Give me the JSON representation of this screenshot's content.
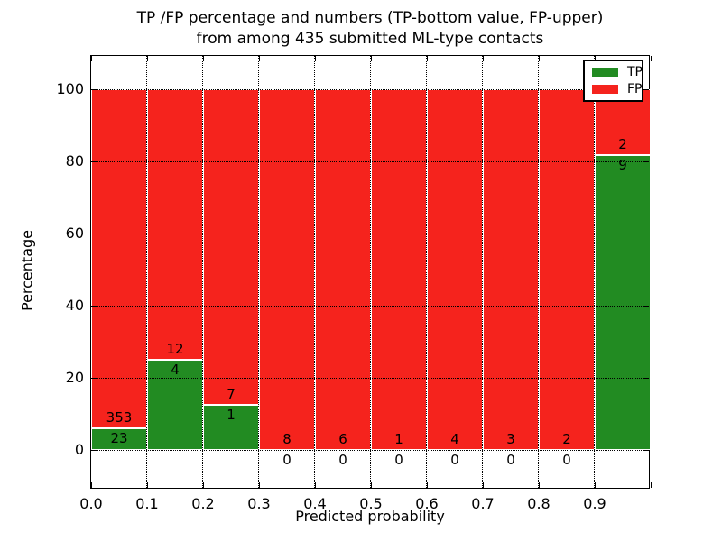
{
  "title": {
    "line1": "TP /FP percentage and numbers (TP-bottom value, FP-upper)",
    "line2": "from among 435 submitted ML-type contacts"
  },
  "chart_data": {
    "type": "bar",
    "stacked": true,
    "normalized": "each bin's TP+FP stack is scaled to 100%",
    "title": "TP /FP percentage and numbers (TP-bottom value, FP-upper) from among 435 submitted ML-type contacts",
    "xlabel": "Predicted probability",
    "ylabel": "Percentage",
    "total_contacts": 435,
    "bin_edges": [
      0.0,
      0.1,
      0.2,
      0.3,
      0.4,
      0.5,
      0.6,
      0.7,
      0.8,
      0.9,
      1.0
    ],
    "xticklabels": [
      "0.0",
      "0.1",
      "0.2",
      "0.3",
      "0.4",
      "0.5",
      "0.6",
      "0.7",
      "0.8",
      "0.9"
    ],
    "yticks": [
      0,
      20,
      40,
      60,
      80,
      100
    ],
    "xlim": [
      0.0,
      1.0
    ],
    "ylim": [
      -11,
      109
    ],
    "grid": "dotted",
    "legend_position": "upper right",
    "series": [
      {
        "name": "TP",
        "color": "#228b22",
        "counts": [
          23,
          4,
          1,
          0,
          0,
          0,
          0,
          0,
          0,
          9
        ]
      },
      {
        "name": "FP",
        "color": "#f5231d",
        "counts": [
          353,
          12,
          7,
          8,
          6,
          1,
          4,
          3,
          2,
          2
        ]
      }
    ],
    "tp_percent_by_bin": [
      6.1,
      25.0,
      12.5,
      0.0,
      0.0,
      0.0,
      0.0,
      0.0,
      0.0,
      81.8
    ],
    "annotation_rule": "FP count printed just above the TP/FP boundary, TP count just below it"
  }
}
